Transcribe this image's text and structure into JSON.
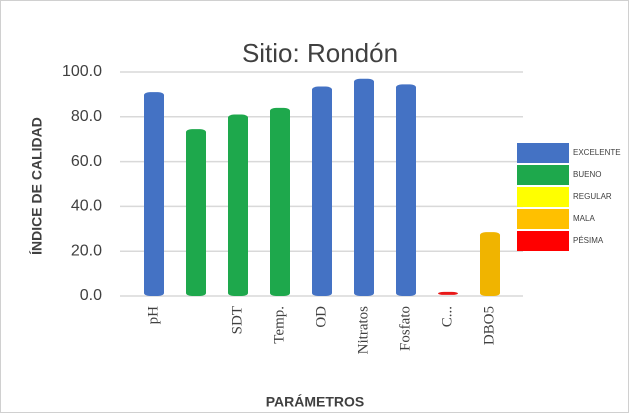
{
  "chart_data": {
    "type": "bar",
    "title": "Sitio: Rondón",
    "y_label": "ÍNDICE DE CALIDAD",
    "x_label": "PARÁMETROS",
    "categories": [
      "pH",
      null,
      "SDT",
      "Temp.",
      "OD",
      "Nitratos",
      "Fosfato",
      "C...",
      "DBO5"
    ],
    "values": [
      91,
      74.5,
      81,
      84,
      93.5,
      97,
      94.5,
      0.5,
      28.5
    ],
    "colors": [
      "#4472c4",
      "#1ea84c",
      "#1ea84c",
      "#1ea84c",
      "#4472c4",
      "#4472c4",
      "#4472c4",
      "#e81818",
      "#f0b400"
    ],
    "ylim": [
      0,
      100
    ],
    "yticks": [
      {
        "value": 0,
        "label": "0.0"
      },
      {
        "value": 20,
        "label": "20.0"
      },
      {
        "value": 40,
        "label": "40.0"
      },
      {
        "value": 60,
        "label": "60.0"
      },
      {
        "value": 80,
        "label": "80.0"
      },
      {
        "value": 100,
        "label": "100.0"
      }
    ],
    "grid": true,
    "legend": [
      {
        "label": "EXCELENTE",
        "color": "#4472c4"
      },
      {
        "label": "BUENO",
        "color": "#1ea84c"
      },
      {
        "label": "REGULAR",
        "color": "#ffff00"
      },
      {
        "label": "MALA",
        "color": "#ffc000"
      },
      {
        "label": "PÉSIMA",
        "color": "#ff0000"
      }
    ]
  }
}
